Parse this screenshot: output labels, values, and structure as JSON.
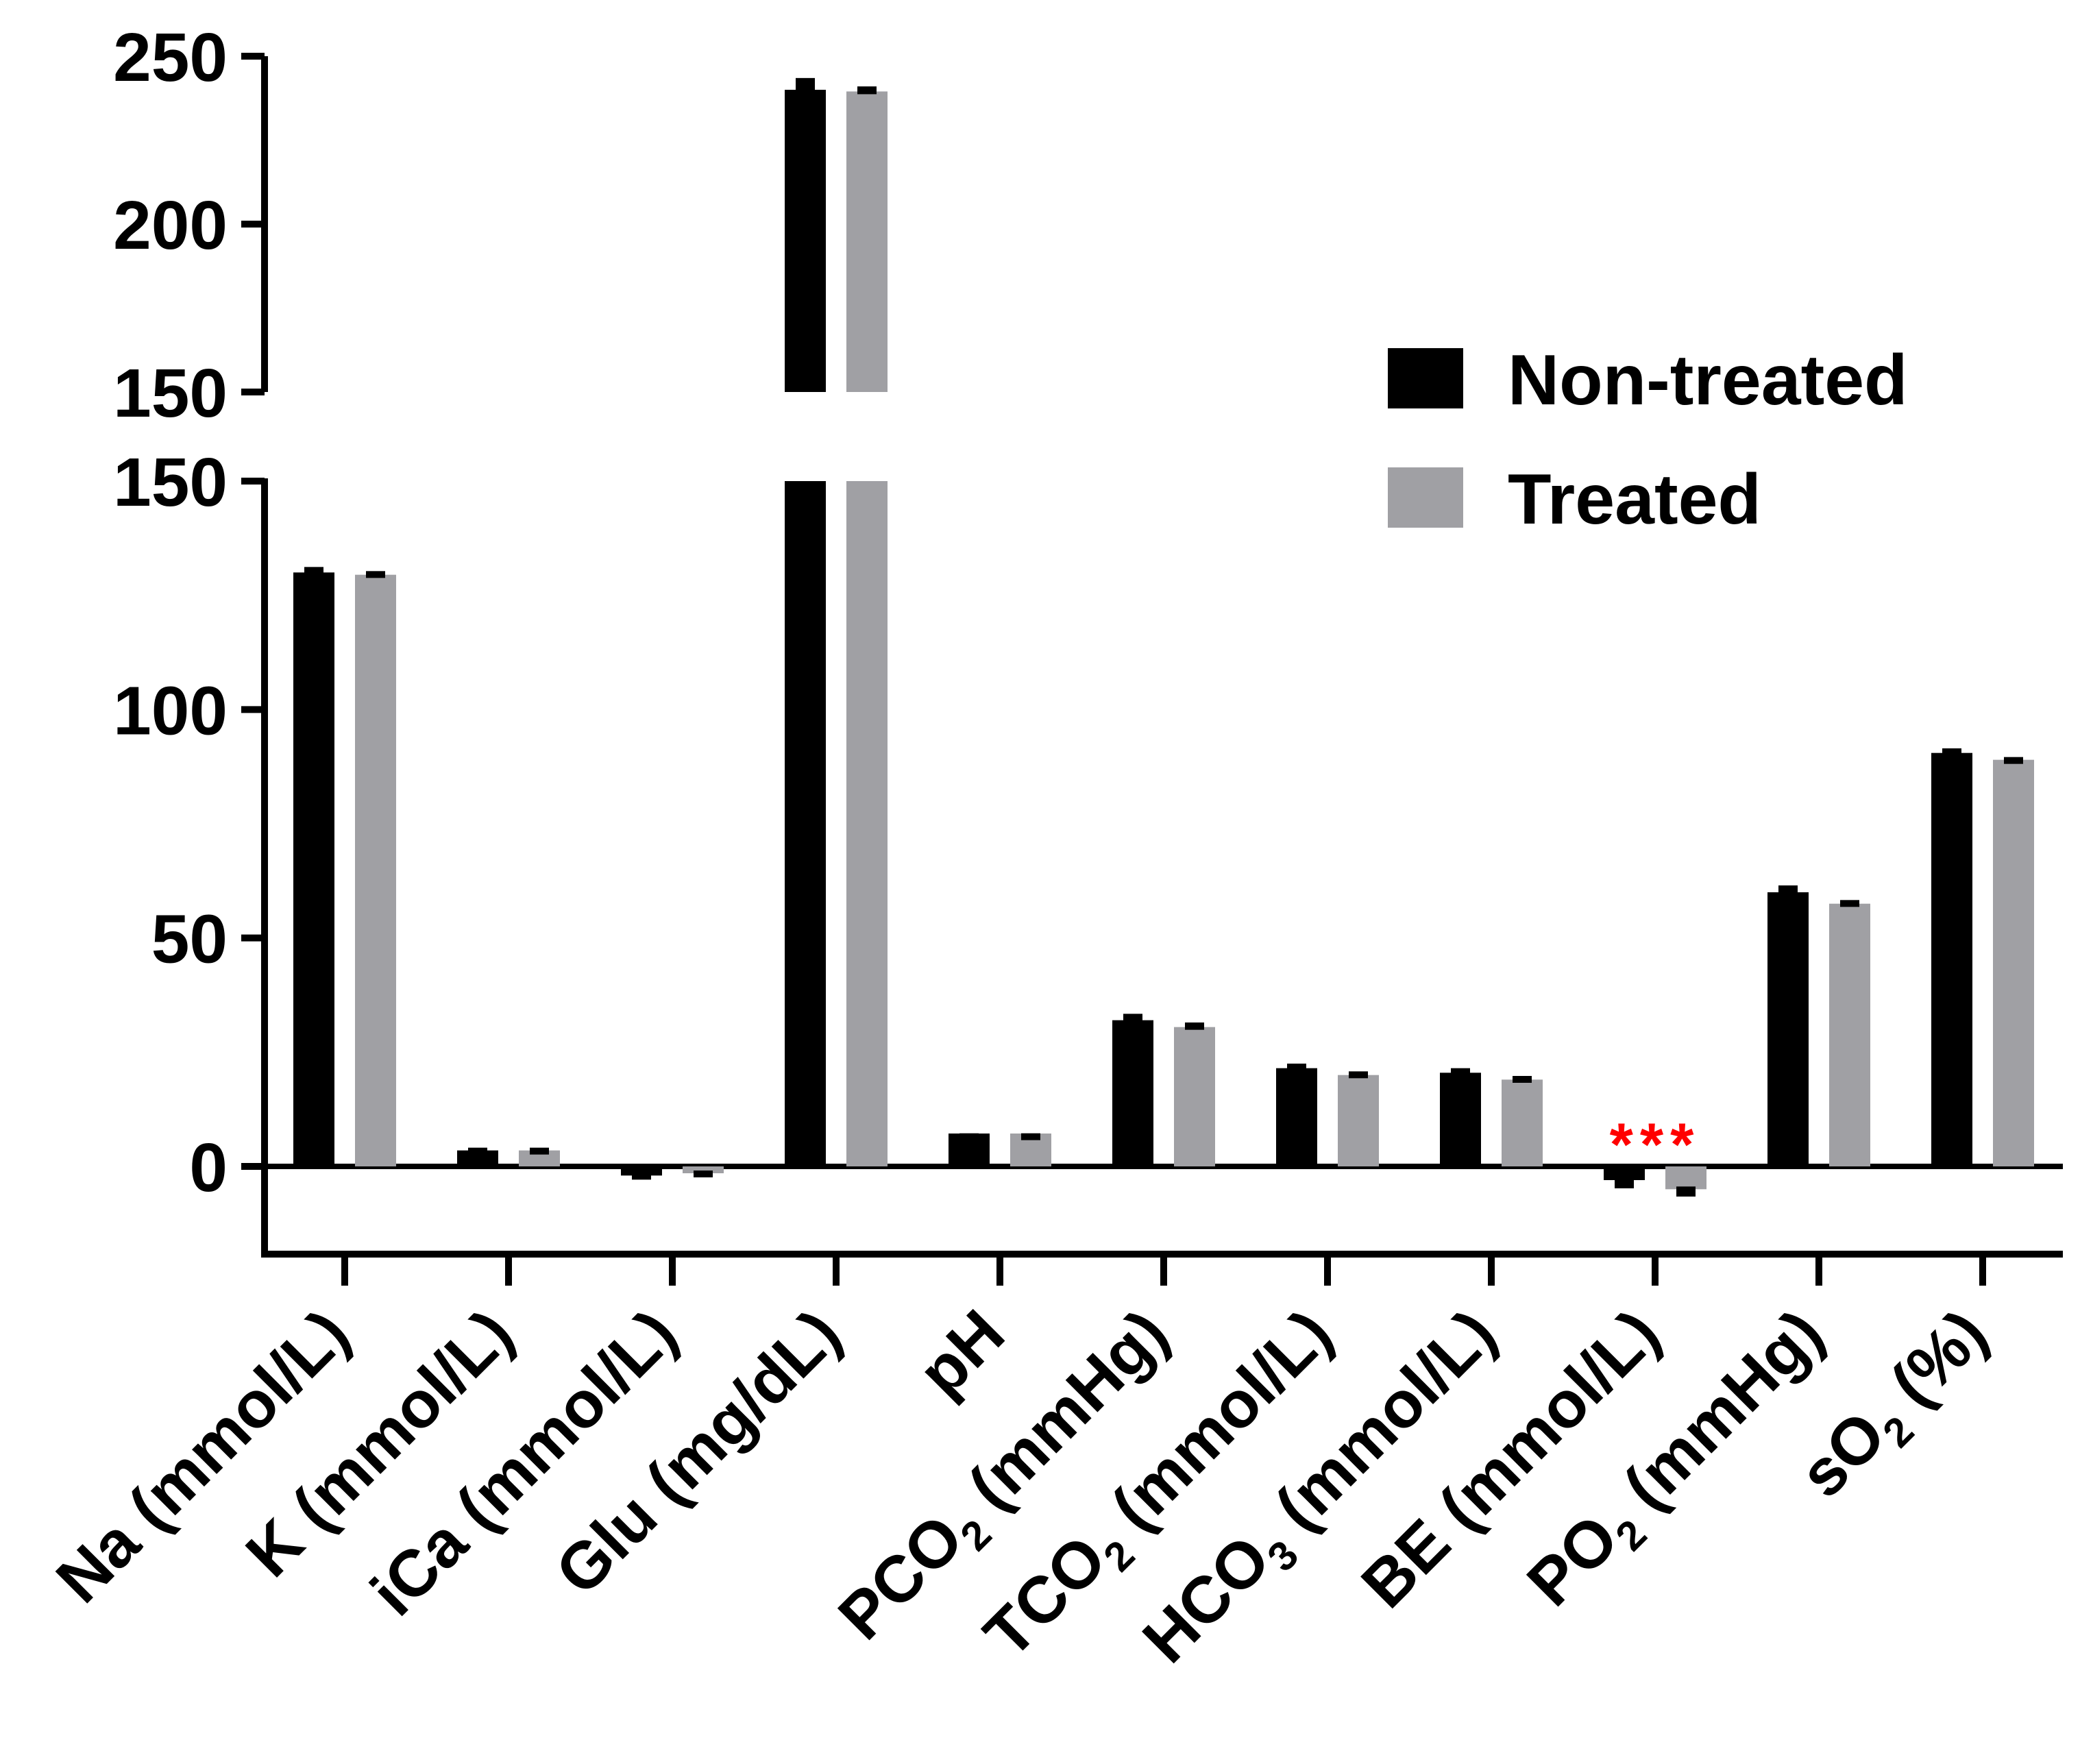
{
  "chart_data": {
    "type": "bar",
    "title": "",
    "xlabel": "",
    "ylabel": "",
    "axis_break": {
      "lower_range": [
        -20,
        150
      ],
      "upper_range": [
        150,
        250
      ]
    },
    "y_ticks_lower": [
      "0",
      "50",
      "100",
      "150"
    ],
    "y_ticks_upper": [
      "150",
      "200",
      "250"
    ],
    "y_tick_values_lower": [
      0,
      50,
      100,
      150
    ],
    "y_tick_values_upper": [
      150,
      200,
      250
    ],
    "categories": [
      {
        "main": "Na (mmol/L)"
      },
      {
        "main": "K (mmol/L)"
      },
      {
        "main": "iCa (mmol/L)"
      },
      {
        "main": "Glu (mg/dL)"
      },
      {
        "main": "pH"
      },
      {
        "main": "PCO",
        "sub": "2",
        "tail": "  (mmHg)"
      },
      {
        "main": "TCO",
        "sub": "2",
        "tail": "  (mmol/L)"
      },
      {
        "main": "HCO",
        "sub": "3",
        "tail": "  (mmol/L)"
      },
      {
        "main": "BE (mmol/L)"
      },
      {
        "main": "PO",
        "sub": "2",
        "tail": "  (mmHg)"
      },
      {
        "main": "sO",
        "sub": "2",
        "tail": "  (%)"
      }
    ],
    "series": [
      {
        "name": "Non-treated",
        "color": "#000000",
        "values": [
          130,
          3.5,
          -2,
          240,
          7.2,
          32,
          21.5,
          20.5,
          -3,
          60,
          90.5
        ],
        "errors": [
          1.2,
          0.6,
          0.4,
          3.5,
          0.05,
          1.4,
          1.0,
          1.0,
          1.8,
          1.5,
          1.0
        ]
      },
      {
        "name": "Treated",
        "color": "#a0a0a4",
        "values": [
          129.5,
          3.5,
          -1.5,
          239.5,
          7.2,
          30.5,
          20,
          19,
          -5,
          57.5,
          89
        ],
        "errors": [
          0.8,
          0.6,
          0.6,
          1.5,
          0.05,
          1.0,
          0.8,
          0.8,
          1.6,
          0.8,
          0.6
        ]
      }
    ],
    "significance": [
      {
        "category_index": 8,
        "label": "***",
        "color": "#ff0000"
      }
    ],
    "legend_position": "top-right"
  }
}
